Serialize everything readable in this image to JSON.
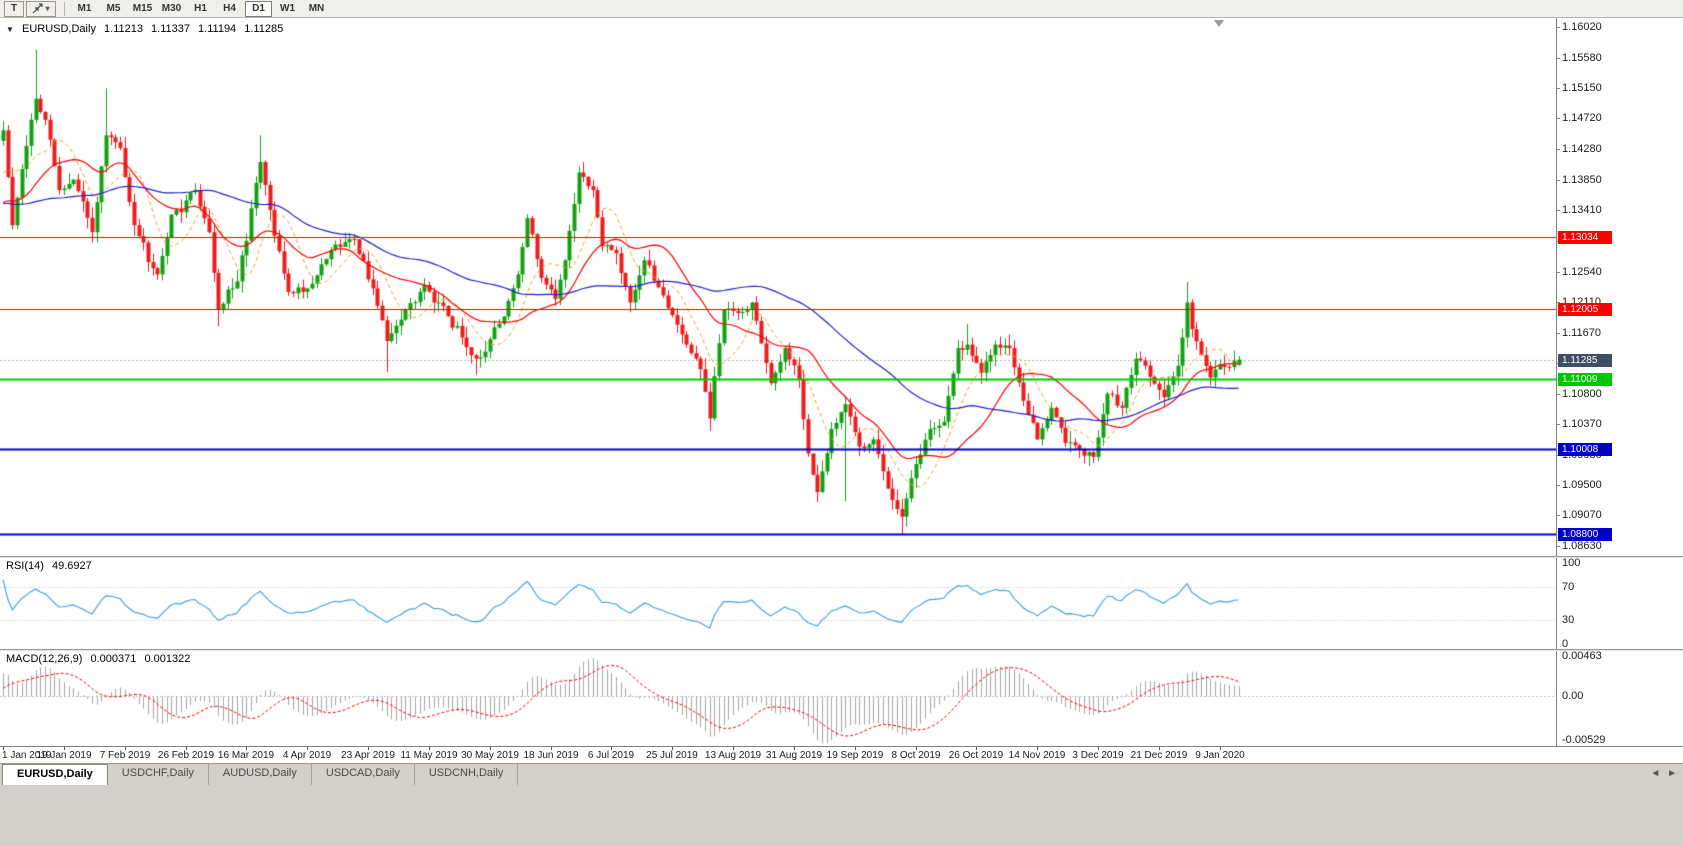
{
  "toolbar": {
    "text_tool_label": "T",
    "timeframes": [
      "M1",
      "M5",
      "M15",
      "M30",
      "H1",
      "H4",
      "D1",
      "W1",
      "MN"
    ],
    "active_timeframe": "D1"
  },
  "chart": {
    "title": "EURUSD,Daily",
    "quote_open": "1.11213",
    "quote_high": "1.11337",
    "quote_low": "1.11194",
    "quote_close": "1.11285"
  },
  "rsi_panel": {
    "label": "RSI(14)",
    "value": "49.6927"
  },
  "macd_panel": {
    "label": "MACD(12,26,9)",
    "value_main": "0.000371",
    "value_signal": "0.001322"
  },
  "tabs": [
    {
      "label": "EURUSD,Daily",
      "active": true
    },
    {
      "label": "USDCHF,Daily",
      "active": false
    },
    {
      "label": "AUDUSD,Daily",
      "active": false
    },
    {
      "label": "USDCAD,Daily",
      "active": false
    },
    {
      "label": "USDCNH,Daily",
      "active": false
    }
  ],
  "colors": {
    "up": "#14a014",
    "down": "#ee1c1c",
    "rsi_line": "#3a9fd9",
    "macd_hist": "#a6a6a6",
    "macd_signal": "#ff0000",
    "bid_box": "#3d4f66",
    "grid_dotted": "#b4b4b4"
  },
  "chart_data": {
    "type": "candlestick",
    "symbol": "EURUSD",
    "timeframe": "Daily",
    "bars": 265,
    "y_range": [
      1.0849,
      1.1615
    ],
    "y_ticks": [
      "1.16020",
      "1.15580",
      "1.15150",
      "1.14720",
      "1.14280",
      "1.13850",
      "1.13410",
      "1.12980",
      "1.12540",
      "1.12110",
      "1.11670",
      "1.11240",
      "1.10800",
      "1.10370",
      "1.09930",
      "1.09500",
      "1.09070",
      "1.08630"
    ],
    "x_tick_labels": [
      "1 Jan 2019",
      "19 Jan 2019",
      "7 Feb 2019",
      "26 Feb 2019",
      "16 Mar 2019",
      "4 Apr 2019",
      "23 Apr 2019",
      "11 May 2019",
      "30 May 2019",
      "18 Jun 2019",
      "6 Jul 2019",
      "25 Jul 2019",
      "13 Aug 2019",
      "31 Aug 2019",
      "19 Sep 2019",
      "8 Oct 2019",
      "26 Oct 2019",
      "14 Nov 2019",
      "3 Dec 2019",
      "21 Dec 2019",
      "9 Jan 2020"
    ],
    "x_ticks_every": 13,
    "current_price": 1.11285,
    "current_price_label": "1.11285",
    "last_bar": {
      "open": 1.11213,
      "high": 1.11337,
      "low": 1.11194,
      "close": 1.11285
    },
    "horizontal_lines": [
      {
        "price": 1.13034,
        "label": "1.13034",
        "color": "#ff0000",
        "width": 1
      },
      {
        "price": 1.12005,
        "label": "1.12005",
        "color": "#ff0000",
        "width": 1
      },
      {
        "price": 1.11009,
        "label": "1.11009",
        "color": "#00c800",
        "width": 2
      },
      {
        "price": 1.10008,
        "label": "1.10008",
        "color": "#0000c8",
        "width": 2
      },
      {
        "price": 1.088,
        "label": "1.08800",
        "color": "#0000c8",
        "width": 2
      }
    ],
    "moving_averages": [
      {
        "period": 9,
        "color": "#f0a32e",
        "dash": true
      },
      {
        "period": 21,
        "color": "#ff0000",
        "dash": false
      },
      {
        "period": 55,
        "color": "#2121cc",
        "dash": false
      }
    ],
    "price_anchors": [
      [
        -60,
        1.132
      ],
      [
        -48,
        1.1405
      ],
      [
        -36,
        1.13
      ],
      [
        -22,
        1.1355
      ],
      [
        -10,
        1.13
      ],
      [
        -1,
        1.144
      ],
      [
        0,
        1.1455
      ],
      [
        2,
        1.132
      ],
      [
        4,
        1.14
      ],
      [
        7,
        1.15
      ],
      [
        9,
        1.147
      ],
      [
        12,
        1.137
      ],
      [
        15,
        1.1385
      ],
      [
        19,
        1.131
      ],
      [
        22,
        1.1448
      ],
      [
        25,
        1.143
      ],
      [
        28,
        1.132
      ],
      [
        33,
        1.125
      ],
      [
        36,
        1.1335
      ],
      [
        41,
        1.137
      ],
      [
        44,
        1.131
      ],
      [
        46,
        1.12
      ],
      [
        50,
        1.124
      ],
      [
        55,
        1.141
      ],
      [
        58,
        1.1305
      ],
      [
        61,
        1.1225
      ],
      [
        65,
        1.123
      ],
      [
        70,
        1.1285
      ],
      [
        75,
        1.13
      ],
      [
        79,
        1.123
      ],
      [
        82,
        1.1155
      ],
      [
        86,
        1.12
      ],
      [
        90,
        1.1235
      ],
      [
        94,
        1.1205
      ],
      [
        98,
        1.116
      ],
      [
        101,
        1.113
      ],
      [
        103,
        1.114
      ],
      [
        107,
        1.119
      ],
      [
        110,
        1.125
      ],
      [
        112,
        1.133
      ],
      [
        115,
        1.1245
      ],
      [
        118,
        1.1215
      ],
      [
        120,
        1.127
      ],
      [
        123,
        1.1395
      ],
      [
        126,
        1.137
      ],
      [
        128,
        1.129
      ],
      [
        131,
        1.128
      ],
      [
        134,
        1.121
      ],
      [
        137,
        1.127
      ],
      [
        141,
        1.122
      ],
      [
        146,
        1.115
      ],
      [
        149,
        1.1115
      ],
      [
        151,
        1.1045
      ],
      [
        152,
        1.1105
      ],
      [
        154,
        1.12
      ],
      [
        157,
        1.1195
      ],
      [
        160,
        1.121
      ],
      [
        164,
        1.1095
      ],
      [
        167,
        1.1145
      ],
      [
        170,
        1.11
      ],
      [
        172,
        1.0995
      ],
      [
        174,
        1.094
      ],
      [
        177,
        1.103
      ],
      [
        180,
        1.1065
      ],
      [
        183,
        1.1005
      ],
      [
        186,
        1.1015
      ],
      [
        189,
        1.0945
      ],
      [
        192,
        1.0905
      ],
      [
        195,
        1.098
      ],
      [
        198,
        1.103
      ],
      [
        201,
        1.104
      ],
      [
        204,
        1.1145
      ],
      [
        206,
        1.115
      ],
      [
        209,
        1.111
      ],
      [
        212,
        1.115
      ],
      [
        215,
        1.1145
      ],
      [
        218,
        1.107
      ],
      [
        221,
        1.1015
      ],
      [
        224,
        1.106
      ],
      [
        227,
        1.101
      ],
      [
        230,
        1.1
      ],
      [
        233,
        1.099
      ],
      [
        236,
        1.108
      ],
      [
        239,
        1.106
      ],
      [
        242,
        1.113
      ],
      [
        244,
        1.112
      ],
      [
        248,
        1.1075
      ],
      [
        251,
        1.112
      ],
      [
        253,
        1.121
      ],
      [
        254,
        1.1172
      ],
      [
        256,
        1.1135
      ],
      [
        258,
        1.1103
      ],
      [
        260,
        1.1122
      ],
      [
        262,
        1.1118
      ],
      [
        264,
        1.11285
      ]
    ],
    "wick_overrides": {
      "7": {
        "h": 1.157
      },
      "22": {
        "h": 1.1515
      },
      "46": {
        "l": 1.1176
      },
      "55": {
        "h": 1.1448
      },
      "82": {
        "l": 1.1111
      },
      "101": {
        "l": 1.1107
      },
      "151": {
        "l": 1.1027
      },
      "174": {
        "l": 1.0926
      },
      "180": {
        "l": 1.0927
      },
      "192": {
        "l": 1.0879
      },
      "206": {
        "h": 1.1179
      },
      "233": {
        "l": 1.0981
      },
      "253": {
        "h": 1.1239
      },
      "258": {
        "l": 1.1092
      }
    },
    "rsi": {
      "period": 14,
      "current": 49.6927,
      "scale": [
        0,
        100
      ],
      "levels": [
        70,
        30
      ],
      "y_tick_labels": [
        "100",
        "70",
        "30",
        "0"
      ]
    },
    "macd": {
      "fast": 12,
      "slow": 26,
      "signal": 9,
      "current_main": 0.000371,
      "current_signal": 0.001322,
      "y_range": [
        -0.00529,
        0.00463
      ],
      "y_tick_labels": [
        "0.00463",
        "0.00",
        "-0.00529"
      ]
    }
  }
}
